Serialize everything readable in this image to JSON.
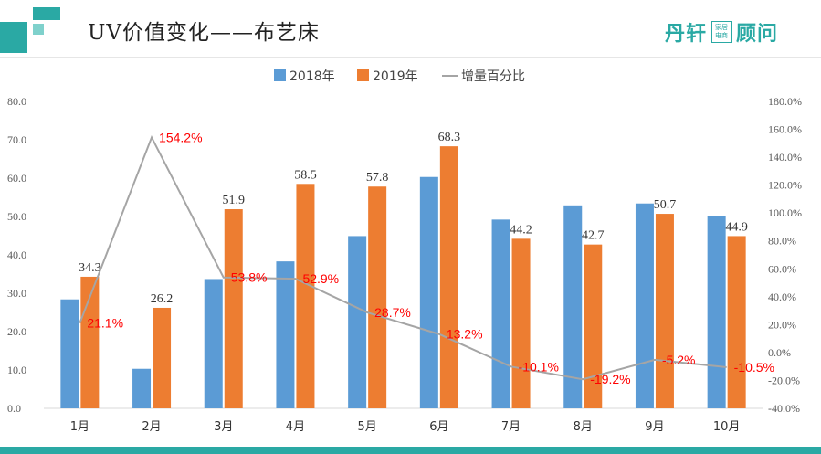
{
  "header": {
    "title": "UV价值变化——布艺床",
    "brand": {
      "name_left": "丹轩",
      "box_top": "家居",
      "box_bottom": "电商",
      "name_right": "顾问"
    }
  },
  "colors": {
    "teal": "#2aa9a4",
    "bar2018": "#5b9bd5",
    "bar2019": "#ed7d31",
    "line": "#a5a5a5",
    "pct_label": "#ff0000"
  },
  "chart_data": {
    "type": "bar",
    "categories": [
      "1月",
      "2月",
      "3月",
      "4月",
      "5月",
      "6月",
      "7月",
      "8月",
      "9月",
      "10月"
    ],
    "series": [
      {
        "name": "2018年",
        "kind": "bar",
        "axis": "left",
        "values": [
          28.4,
          10.3,
          33.7,
          38.3,
          44.9,
          60.3,
          49.2,
          52.9,
          53.4,
          50.2
        ]
      },
      {
        "name": "2019年",
        "kind": "bar",
        "axis": "left",
        "values": [
          34.3,
          26.2,
          51.9,
          58.5,
          57.8,
          68.3,
          44.2,
          42.7,
          50.7,
          44.9
        ],
        "labels": [
          "34.3",
          "26.2",
          "51.9",
          "58.5",
          "57.8",
          "68.3",
          "44.2",
          "42.7",
          "50.7",
          "44.9"
        ]
      },
      {
        "name": "增量百分比",
        "kind": "line",
        "axis": "right",
        "values": [
          21.1,
          154.2,
          53.8,
          52.9,
          28.7,
          13.2,
          -10.1,
          -19.2,
          -5.2,
          -10.5
        ],
        "labels": [
          "21.1%",
          "154.2%",
          "53.8%",
          "52.9%",
          "28.7%",
          "13.2%",
          "-10.1%",
          "-19.2%",
          "-5.2%",
          "-10.5%"
        ]
      }
    ],
    "y_left": {
      "range": [
        0,
        80
      ],
      "ticks": [
        "0.0",
        "10.0",
        "20.0",
        "30.0",
        "40.0",
        "50.0",
        "60.0",
        "70.0",
        "80.0"
      ]
    },
    "y_right": {
      "range": [
        -40,
        180
      ],
      "ticks": [
        "-40.0%",
        "-20.0%",
        "0.0%",
        "20.0%",
        "40.0%",
        "60.0%",
        "80.0%",
        "100.0%",
        "120.0%",
        "140.0%",
        "160.0%",
        "180.0%"
      ]
    },
    "legend": {
      "position": "top",
      "entries": [
        "2018年",
        "2019年",
        "增量百分比"
      ]
    },
    "grid": false
  }
}
